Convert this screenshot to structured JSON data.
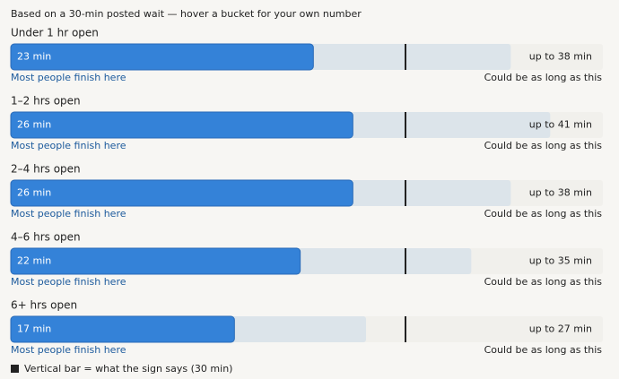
{
  "chart_data": {
    "type": "range-bar",
    "subtitle": "Based on a 30-min posted wait — hover a bucket for your own number",
    "categories": [
      "Under 1 hr open",
      "1–2 hrs open",
      "2–4 hrs open",
      "4–6 hrs open",
      "6+ hrs open"
    ],
    "series": [
      {
        "name": "Most people finish here",
        "color": "#3482d8",
        "values": [
          23,
          26,
          26,
          22,
          17
        ],
        "value_labels": [
          "23 min",
          "26 min",
          "26 min",
          "22 min",
          "17 min"
        ]
      },
      {
        "name": "Could be as long as this",
        "color": "#dce4ea",
        "values": [
          38,
          41,
          38,
          35,
          27
        ],
        "value_labels": [
          "up to 38 min",
          "up to 41 min",
          "up to 38 min",
          "up to 35 min",
          "up to 27 min"
        ]
      }
    ],
    "reference": {
      "value": 30,
      "label": "Vertical bar = what the sign says (30 min)",
      "color": "#222222"
    },
    "xlim": [
      0,
      45
    ]
  }
}
